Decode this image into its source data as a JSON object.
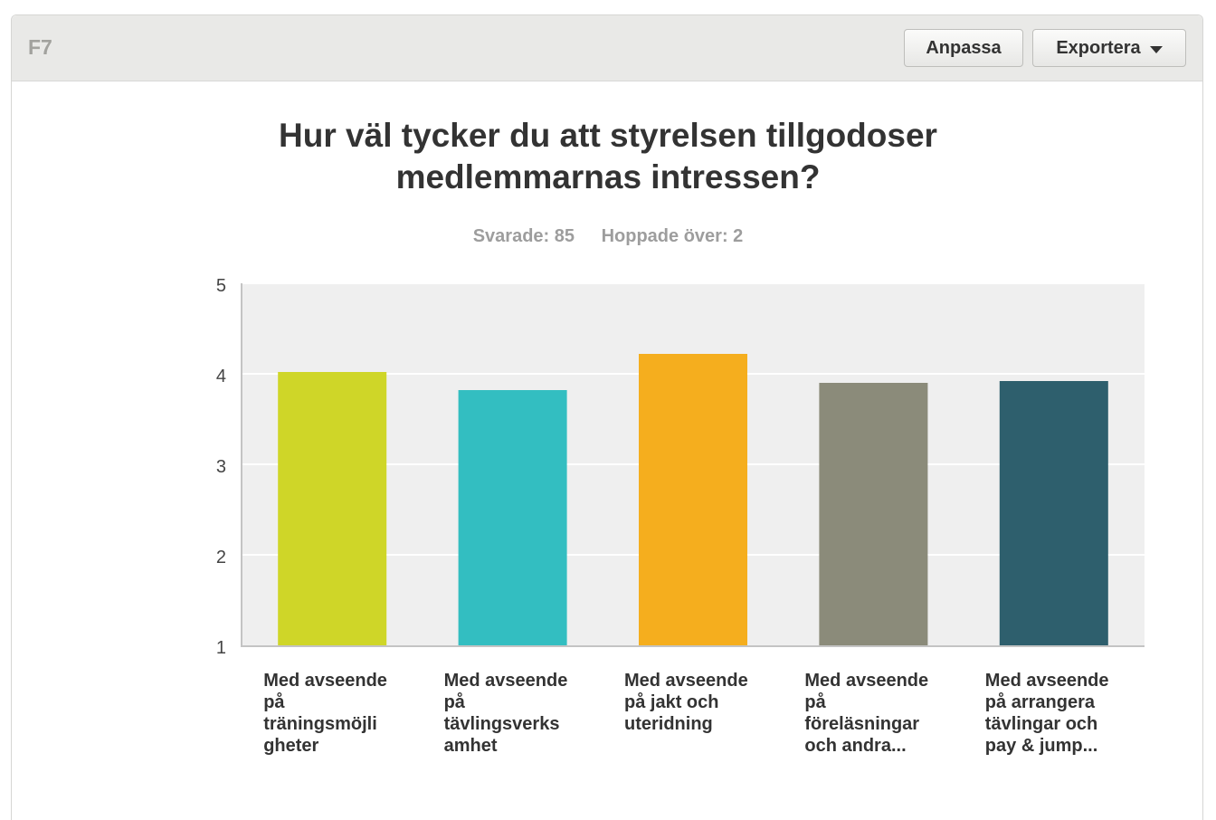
{
  "header": {
    "question_number": "F7",
    "customize_label": "Anpassa",
    "export_label": "Exportera",
    "export_icon": "caret-down-icon"
  },
  "question": {
    "title_line1": "Hur väl tycker du att styrelsen tillgodoser",
    "title_line2": "medlemmarnas intressen?",
    "answered": "Svarade: 85",
    "skipped": "Hoppade över: 2"
  },
  "chart_data": {
    "type": "bar",
    "title": "Hur väl tycker du att styrelsen tillgodoser medlemmarnas intressen?",
    "xlabel": "",
    "ylabel": "",
    "ylim": [
      1,
      5
    ],
    "yticks": [
      1,
      2,
      3,
      4,
      5
    ],
    "grid": true,
    "legend": "none",
    "categories": [
      [
        "Med avseende",
        "på",
        "träningsmöjli",
        "gheter"
      ],
      [
        "Med avseende",
        "på",
        "tävlingsverks",
        "amhet"
      ],
      [
        "Med avseende",
        "på jakt och",
        "uteridning"
      ],
      [
        "Med avseende",
        "på",
        "föreläsningar",
        "och andra..."
      ],
      [
        "Med avseende",
        "på arrangera",
        "tävlingar och",
        "pay & jump..."
      ]
    ],
    "values": [
      4.02,
      3.82,
      4.22,
      3.9,
      3.92
    ],
    "colors": [
      "#cfd628",
      "#33bec1",
      "#f5ae1e",
      "#8b8b7a",
      "#2e5f6d"
    ]
  }
}
